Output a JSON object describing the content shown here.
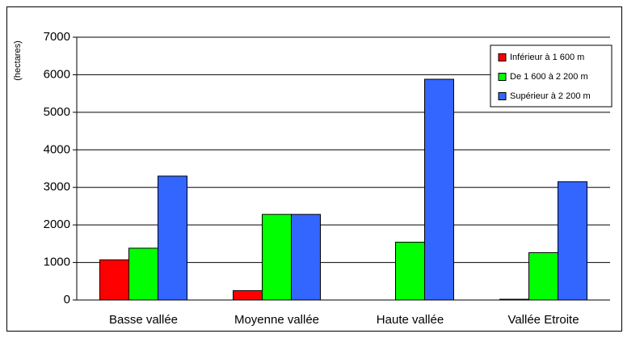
{
  "chart_data": {
    "type": "bar",
    "ylabel": "(hectares)",
    "categories": [
      "Basse vallée",
      "Moyenne vallée",
      "Haute vallée",
      "Vallée Etroite"
    ],
    "series": [
      {
        "name": "Inférieur à 1 600 m",
        "color": "#ff0000",
        "values": [
          1070,
          250,
          0,
          20
        ]
      },
      {
        "name": "De 1 600 à 2 200 m",
        "color": "#00ff00",
        "values": [
          1380,
          2280,
          1540,
          1260
        ]
      },
      {
        "name": "Supérieur à 2 200 m",
        "color": "#3366ff",
        "values": [
          3300,
          2280,
          5880,
          3150
        ]
      }
    ],
    "ylim": [
      0,
      7000
    ],
    "yticks": [
      0,
      1000,
      2000,
      3000,
      4000,
      5000,
      6000,
      7000
    ],
    "grid": true,
    "legend": "upper right"
  }
}
